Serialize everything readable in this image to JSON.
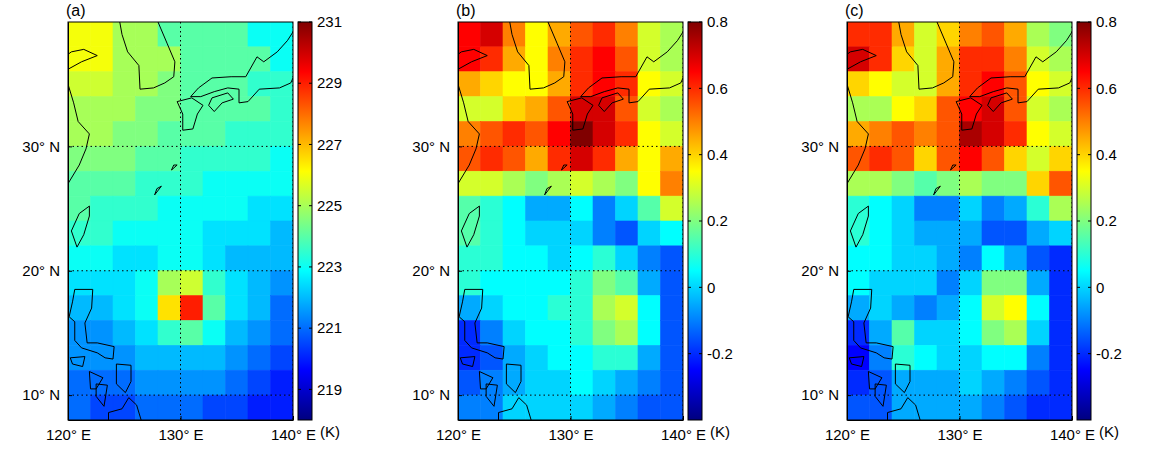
{
  "chart_data": [
    {
      "type": "heatmap",
      "panel_label": "(a)",
      "x": [
        121,
        123,
        125,
        127,
        129,
        131,
        133,
        135,
        137,
        139
      ],
      "y": [
        39,
        37,
        35,
        33,
        31,
        29,
        27,
        25,
        23,
        21,
        19,
        17,
        15,
        13,
        11,
        9
      ],
      "z": [
        [
          226,
          226,
          225,
          225,
          224,
          224,
          224,
          224,
          223,
          223
        ],
        [
          226,
          226,
          225,
          225,
          225,
          224,
          224,
          224,
          224,
          223
        ],
        [
          225.5,
          225.5,
          225,
          225,
          224.5,
          224,
          224,
          224,
          223.5,
          223.5
        ],
        [
          225,
          225,
          225,
          224.5,
          224.5,
          224,
          224,
          224,
          224,
          223.5
        ],
        [
          225,
          225,
          224.5,
          224.5,
          224,
          224,
          224,
          223.5,
          223.5,
          223.5
        ],
        [
          224.5,
          224.5,
          224.5,
          224,
          224,
          223.5,
          223.5,
          223.5,
          223.5,
          223
        ],
        [
          224,
          224,
          224,
          223.5,
          223.5,
          223.5,
          223,
          223,
          223,
          223
        ],
        [
          224,
          223.5,
          223.5,
          223.5,
          223,
          223,
          223,
          223,
          222.5,
          222.5
        ],
        [
          223.5,
          223.5,
          223,
          223,
          223,
          223,
          222.5,
          222.5,
          222.5,
          222
        ],
        [
          223,
          223,
          222.5,
          222.5,
          223,
          223,
          222.5,
          222,
          222,
          222
        ],
        [
          222.5,
          222.5,
          222.5,
          223,
          225,
          225.5,
          223.5,
          222.5,
          222,
          221.5
        ],
        [
          222,
          222,
          222.5,
          223,
          226.5,
          229,
          224,
          222.5,
          222,
          221
        ],
        [
          221.5,
          221.5,
          222,
          222.5,
          223.5,
          224,
          223,
          222,
          221.5,
          221
        ],
        [
          221.5,
          221.5,
          221.5,
          222,
          222,
          222,
          222,
          221.5,
          221,
          220.5
        ],
        [
          221,
          221,
          221,
          221.5,
          221.5,
          221.5,
          221.5,
          221,
          220.5,
          220
        ],
        [
          221,
          220.5,
          220.5,
          221,
          221,
          221,
          220.5,
          220.5,
          220,
          220
        ]
      ],
      "xlim": [
        120,
        140
      ],
      "ylim": [
        8,
        40
      ],
      "xticks": [
        {
          "value": 120,
          "label": "120° E"
        },
        {
          "value": 130,
          "label": "130° E"
        },
        {
          "value": 140,
          "label": "140° E"
        }
      ],
      "yticks": [
        {
          "value": 10,
          "label": "10° N"
        },
        {
          "value": 20,
          "label": "20° N"
        },
        {
          "value": 30,
          "label": "30° N"
        }
      ],
      "grid": true,
      "colorbar": {
        "range": [
          218,
          231
        ],
        "ticks": [
          219,
          221,
          223,
          225,
          227,
          229,
          231
        ],
        "label": "(K)"
      }
    },
    {
      "type": "heatmap",
      "panel_label": "(b)",
      "x": [
        121,
        123,
        125,
        127,
        129,
        131,
        133,
        135,
        137,
        139
      ],
      "y": [
        39,
        37,
        35,
        33,
        31,
        29,
        27,
        25,
        23,
        21,
        19,
        17,
        15,
        13,
        11,
        9
      ],
      "z": [
        [
          0.65,
          0.7,
          0.5,
          0.35,
          0.45,
          0.55,
          0.6,
          0.5,
          0.3,
          0.25
        ],
        [
          0.65,
          0.6,
          0.45,
          0.35,
          0.5,
          0.6,
          0.65,
          0.55,
          0.3,
          0.25
        ],
        [
          0.45,
          0.4,
          0.35,
          0.35,
          0.45,
          0.6,
          0.65,
          0.6,
          0.35,
          0.3
        ],
        [
          0.3,
          0.3,
          0.4,
          0.45,
          0.55,
          0.7,
          0.7,
          0.55,
          0.3,
          0.25
        ],
        [
          0.5,
          0.55,
          0.6,
          0.55,
          0.65,
          0.8,
          0.7,
          0.6,
          0.35,
          0.3
        ],
        [
          0.55,
          0.6,
          0.55,
          0.45,
          0.6,
          0.7,
          0.6,
          0.45,
          0.35,
          0.45
        ],
        [
          0.3,
          0.3,
          0.25,
          0.2,
          0.25,
          0.3,
          0.25,
          0.2,
          0.35,
          0.5
        ],
        [
          0.15,
          0.1,
          0.05,
          -0.05,
          -0.05,
          0.05,
          -0.1,
          0.0,
          0.15,
          0.3
        ],
        [
          0.15,
          0.1,
          0.05,
          0.0,
          0.0,
          0.0,
          -0.1,
          -0.15,
          0.0,
          0.05
        ],
        [
          0.1,
          0.1,
          0.05,
          0.05,
          0.0,
          0.05,
          0.1,
          0.0,
          -0.1,
          -0.15
        ],
        [
          0.1,
          0.05,
          0.05,
          0.05,
          0.05,
          0.1,
          0.2,
          0.15,
          -0.05,
          -0.15
        ],
        [
          -0.05,
          0.0,
          0.05,
          0.05,
          0.1,
          0.1,
          0.25,
          0.3,
          0.05,
          -0.15
        ],
        [
          -0.2,
          -0.1,
          0.0,
          0.05,
          0.05,
          0.1,
          0.2,
          0.25,
          0.05,
          -0.15
        ],
        [
          -0.2,
          -0.15,
          -0.05,
          0.0,
          0.05,
          0.05,
          0.1,
          0.1,
          -0.05,
          -0.15
        ],
        [
          -0.15,
          -0.1,
          -0.05,
          0.0,
          0.0,
          0.05,
          0.0,
          -0.05,
          -0.1,
          -0.15
        ],
        [
          -0.1,
          -0.1,
          0.0,
          0.0,
          0.0,
          0.0,
          -0.05,
          -0.1,
          -0.15,
          -0.15
        ]
      ],
      "xlim": [
        120,
        140
      ],
      "ylim": [
        8,
        40
      ],
      "xticks": [
        {
          "value": 120,
          "label": "120° E"
        },
        {
          "value": 130,
          "label": "130° E"
        },
        {
          "value": 140,
          "label": "140° E"
        }
      ],
      "yticks": [
        {
          "value": 10,
          "label": "10° N"
        },
        {
          "value": 20,
          "label": "20° N"
        },
        {
          "value": 30,
          "label": "30° N"
        }
      ],
      "grid": true,
      "colorbar": {
        "range": [
          -0.4,
          0.8
        ],
        "ticks": [
          -0.2,
          0,
          0.2,
          0.4,
          0.6,
          0.8
        ],
        "label": "(K)"
      }
    },
    {
      "type": "heatmap",
      "panel_label": "(c)",
      "x": [
        121,
        123,
        125,
        127,
        129,
        131,
        133,
        135,
        137,
        139
      ],
      "y": [
        39,
        37,
        35,
        33,
        31,
        29,
        27,
        25,
        23,
        21,
        19,
        17,
        15,
        13,
        11,
        9
      ],
      "z": [
        [
          0.6,
          0.6,
          0.45,
          0.3,
          0.4,
          0.5,
          0.55,
          0.45,
          0.25,
          0.2
        ],
        [
          0.7,
          0.6,
          0.4,
          0.3,
          0.45,
          0.6,
          0.6,
          0.5,
          0.3,
          0.25
        ],
        [
          0.4,
          0.35,
          0.3,
          0.3,
          0.45,
          0.6,
          0.65,
          0.55,
          0.35,
          0.3
        ],
        [
          0.25,
          0.25,
          0.35,
          0.4,
          0.55,
          0.65,
          0.7,
          0.55,
          0.3,
          0.25
        ],
        [
          0.45,
          0.5,
          0.55,
          0.5,
          0.55,
          0.75,
          0.7,
          0.6,
          0.35,
          0.3
        ],
        [
          0.55,
          0.6,
          0.55,
          0.4,
          0.55,
          0.65,
          0.55,
          0.4,
          0.3,
          0.4
        ],
        [
          0.25,
          0.25,
          0.2,
          0.15,
          0.2,
          0.25,
          0.2,
          0.2,
          0.4,
          0.55
        ],
        [
          0.1,
          0.05,
          0.0,
          -0.1,
          -0.1,
          0.0,
          -0.1,
          -0.05,
          0.1,
          0.25
        ],
        [
          0.1,
          0.05,
          0.0,
          -0.05,
          -0.05,
          -0.05,
          -0.15,
          -0.15,
          -0.05,
          0.0
        ],
        [
          0.05,
          0.05,
          0.0,
          0.0,
          -0.05,
          -0.1,
          0.05,
          -0.05,
          -0.15,
          -0.2
        ],
        [
          0.05,
          0.0,
          0.0,
          0.0,
          -0.1,
          0.0,
          0.2,
          0.2,
          -0.05,
          -0.2
        ],
        [
          -0.05,
          0.0,
          -0.05,
          -0.1,
          -0.05,
          0.05,
          0.3,
          0.35,
          0.05,
          -0.2
        ],
        [
          -0.2,
          -0.05,
          0.15,
          0.0,
          0.0,
          0.05,
          0.2,
          0.25,
          0.0,
          -0.2
        ],
        [
          -0.25,
          -0.1,
          0.1,
          0.05,
          0.0,
          0.0,
          0.05,
          0.05,
          -0.1,
          -0.2
        ],
        [
          -0.2,
          -0.15,
          -0.05,
          -0.05,
          -0.05,
          0.0,
          -0.05,
          -0.1,
          -0.15,
          -0.2
        ],
        [
          -0.15,
          -0.15,
          -0.05,
          -0.05,
          -0.05,
          -0.05,
          -0.1,
          -0.15,
          -0.2,
          -0.2
        ]
      ],
      "xlim": [
        120,
        140
      ],
      "ylim": [
        8,
        40
      ],
      "xticks": [
        {
          "value": 120,
          "label": "120° E"
        },
        {
          "value": 130,
          "label": "130° E"
        },
        {
          "value": 140,
          "label": "140° E"
        }
      ],
      "yticks": [
        {
          "value": 10,
          "label": "10° N"
        },
        {
          "value": 20,
          "label": "20° N"
        },
        {
          "value": 30,
          "label": "30° N"
        }
      ],
      "grid": true,
      "colorbar": {
        "range": [
          -0.4,
          0.8
        ],
        "ticks": [
          -0.2,
          0,
          0.2,
          0.4,
          0.6,
          0.8
        ],
        "label": "(K)"
      }
    }
  ]
}
